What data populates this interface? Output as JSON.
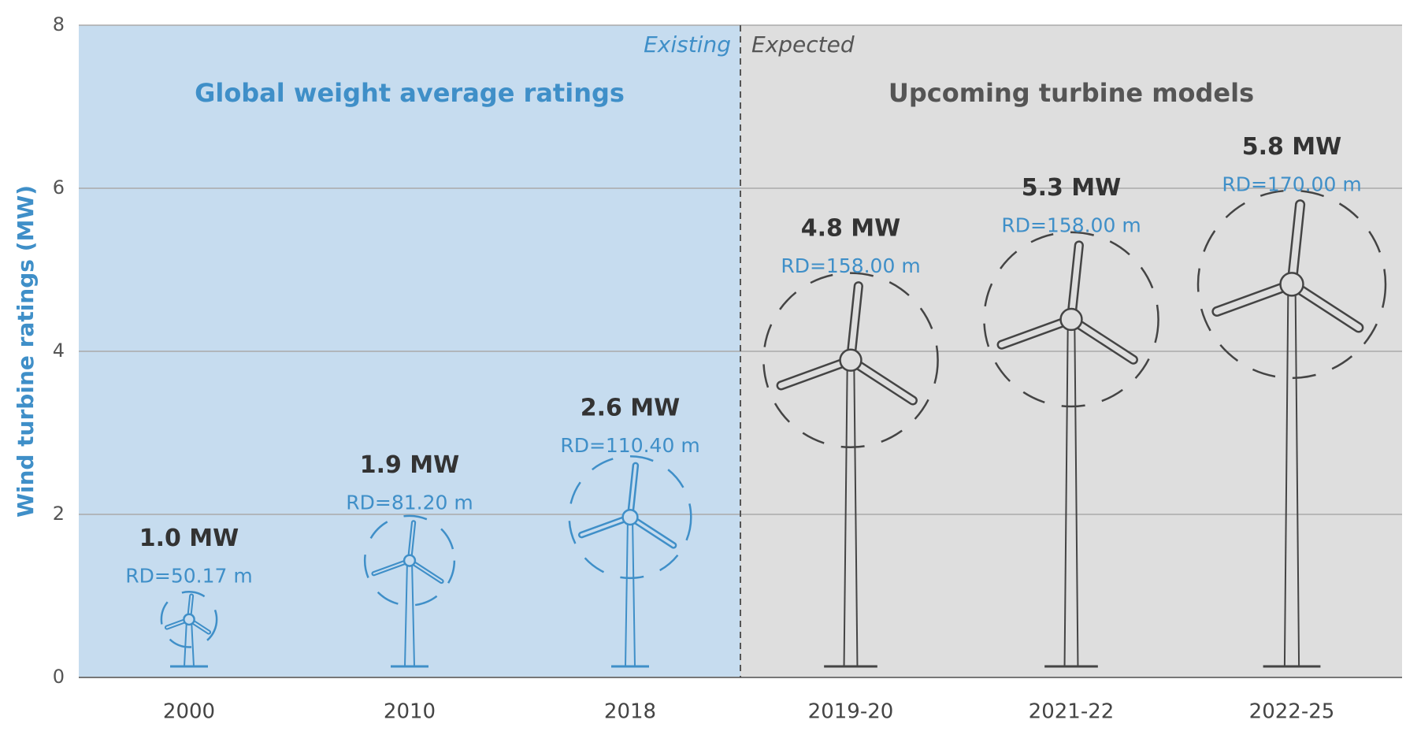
{
  "chart_data": {
    "type": "turbine",
    "y_label": "Wind turbine ratings (MW)",
    "ylim": [
      0,
      8
    ],
    "yticks": [
      0,
      2,
      4,
      6,
      8
    ],
    "grid": true,
    "series": [
      {
        "name": "Existing",
        "title": "Global weight average ratings",
        "color": "#3f8fc8",
        "background": "#c6dcef",
        "categories": [
          "2000",
          "2010",
          "2018"
        ],
        "values": [
          1.0,
          1.9,
          2.6
        ],
        "value_labels": [
          "1.0 MW",
          "1.9 MW",
          "2.6 MW"
        ],
        "rotor_diameters": [
          50.17,
          81.2,
          110.4
        ],
        "rd_labels": [
          "RD=50.17 m",
          "RD=81.20 m",
          "RD=110.40 m"
        ]
      },
      {
        "name": "Expected",
        "title": "Upcoming turbine models",
        "color": "#444444",
        "background": "#dedede",
        "categories": [
          "2019-20",
          "2021-22",
          "2022-25"
        ],
        "values": [
          4.8,
          5.3,
          5.8
        ],
        "value_labels": [
          "4.8 MW",
          "5.3 MW",
          "5.8 MW"
        ],
        "rotor_diameters": [
          158.0,
          158.0,
          170.0
        ],
        "rd_labels": [
          "RD=158.00 m",
          "RD=158.00 m",
          "RD=170.00 m"
        ]
      }
    ]
  }
}
